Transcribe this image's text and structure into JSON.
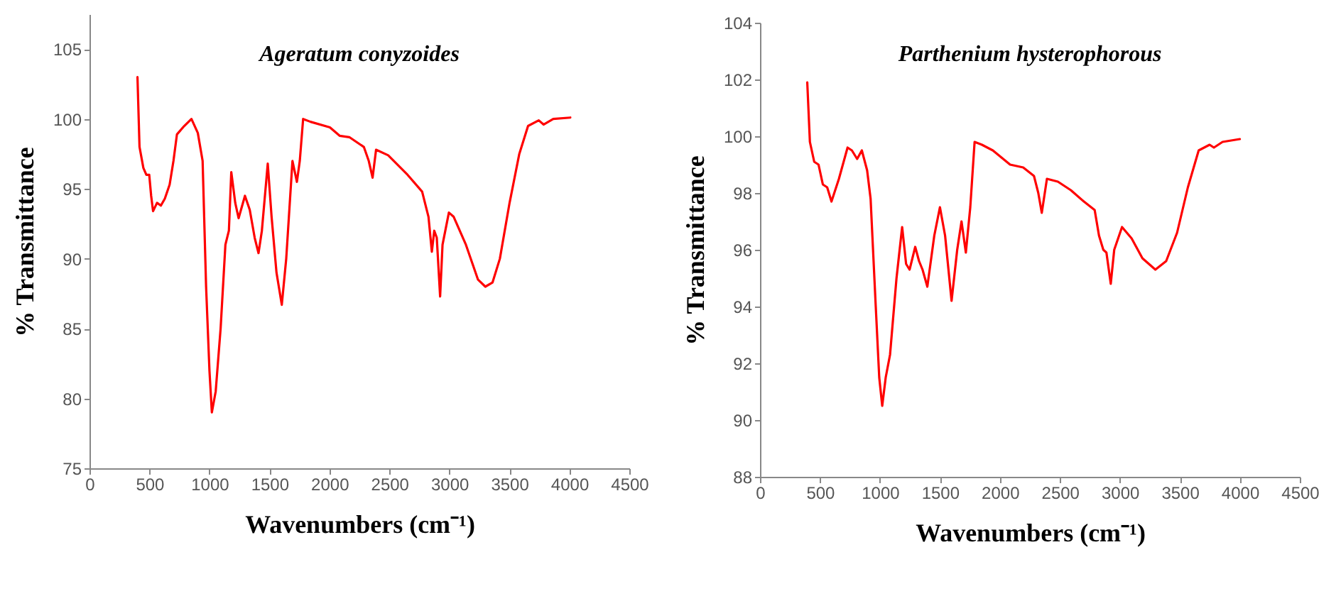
{
  "chart_data": [
    {
      "type": "line",
      "title": "Ageratum conyzoides",
      "xlabel": "Wavenumbers (cm⁻¹)",
      "ylabel": "% Transmittance",
      "xlim": [
        0,
        4500
      ],
      "xticks": [
        0,
        500,
        1000,
        1500,
        2000,
        2500,
        3000,
        3500,
        4000,
        4500
      ],
      "ylim": [
        75,
        107.5
      ],
      "yticks": [
        75,
        80,
        85,
        90,
        95,
        100,
        105
      ],
      "grid": false,
      "marker": "none",
      "line_style": "solid",
      "x": [
        400,
        417,
        449,
        474,
        498,
        514,
        530,
        563,
        595,
        628,
        668,
        700,
        729,
        790,
        850,
        903,
        943,
        972,
        1000,
        1020,
        1052,
        1093,
        1133,
        1162,
        1182,
        1215,
        1243,
        1296,
        1336,
        1377,
        1409,
        1437,
        1486,
        1518,
        1559,
        1603,
        1640,
        1692,
        1729,
        1753,
        1781,
        1842,
        2004,
        2085,
        2166,
        2287,
        2328,
        2360,
        2389,
        2490,
        2652,
        2773,
        2826,
        2854,
        2874,
        2895,
        2923,
        2943,
        2996,
        3036,
        3138,
        3239,
        3300,
        3360,
        3421,
        3502,
        3583,
        3656,
        3745,
        3785,
        3866,
        4008
      ],
      "series": [
        {
          "color": "#ff0000",
          "values": [
            103,
            98,
            96.5,
            96,
            96,
            94.5,
            93.4,
            94,
            93.8,
            94.3,
            95.3,
            97,
            98.9,
            99.5,
            100,
            99,
            97,
            88,
            82,
            79,
            80.5,
            85,
            91,
            92,
            96.2,
            94,
            92.9,
            94.5,
            93.5,
            91.5,
            90.4,
            92,
            96.8,
            93,
            89,
            86.7,
            90,
            97,
            95.5,
            97,
            100,
            99.8,
            99.4,
            98.8,
            98.7,
            98,
            97,
            95.8,
            97.8,
            97.4,
            96,
            94.8,
            93,
            90.5,
            92,
            91.5,
            87.3,
            91,
            93.3,
            93,
            91,
            88.5,
            88,
            88.3,
            90,
            94,
            97.5,
            99.5,
            99.9,
            99.6,
            100,
            100.1
          ]
        }
      ]
    },
    {
      "type": "line",
      "title": "Parthenium hysterophorous",
      "xlabel": "Wavenumbers (cm⁻¹)",
      "ylabel": "% Transmittance",
      "xlim": [
        0,
        4500
      ],
      "xticks": [
        0,
        500,
        1000,
        1500,
        2000,
        2500,
        3000,
        3500,
        4000,
        4500
      ],
      "ylim": [
        88,
        104
      ],
      "yticks": [
        88,
        90,
        92,
        94,
        96,
        98,
        100,
        102,
        104
      ],
      "grid": false,
      "marker": "none",
      "line_style": "solid",
      "x": [
        394,
        416,
        452,
        488,
        524,
        560,
        596,
        658,
        730,
        766,
        810,
        849,
        893,
        922,
        965,
        994,
        1019,
        1048,
        1084,
        1138,
        1185,
        1218,
        1247,
        1294,
        1326,
        1355,
        1395,
        1453,
        1500,
        1543,
        1597,
        1644,
        1680,
        1716,
        1753,
        1789,
        1850,
        1941,
        2085,
        2194,
        2284,
        2320,
        2349,
        2392,
        2483,
        2591,
        2700,
        2790,
        2826,
        2862,
        2888,
        2924,
        2953,
        3018,
        3098,
        3188,
        3296,
        3386,
        3477,
        3567,
        3657,
        3748,
        3784,
        3856,
        4000
      ],
      "series": [
        {
          "color": "#ff0000",
          "values": [
            101.9,
            99.8,
            99.1,
            99,
            98.3,
            98.2,
            97.7,
            98.5,
            99.6,
            99.5,
            99.2,
            99.5,
            98.8,
            97.8,
            94,
            91.5,
            90.5,
            91.5,
            92.3,
            95,
            96.8,
            95.5,
            95.3,
            96.1,
            95.6,
            95.3,
            94.7,
            96.5,
            97.5,
            96.5,
            94.2,
            96,
            97,
            95.9,
            97.5,
            99.8,
            99.7,
            99.5,
            99,
            98.9,
            98.6,
            98,
            97.3,
            98.5,
            98.4,
            98.1,
            97.7,
            97.4,
            96.5,
            96,
            95.9,
            94.8,
            96,
            96.8,
            96.4,
            95.7,
            95.3,
            95.6,
            96.6,
            98.2,
            99.5,
            99.7,
            99.6,
            99.8,
            99.9
          ]
        }
      ]
    }
  ]
}
